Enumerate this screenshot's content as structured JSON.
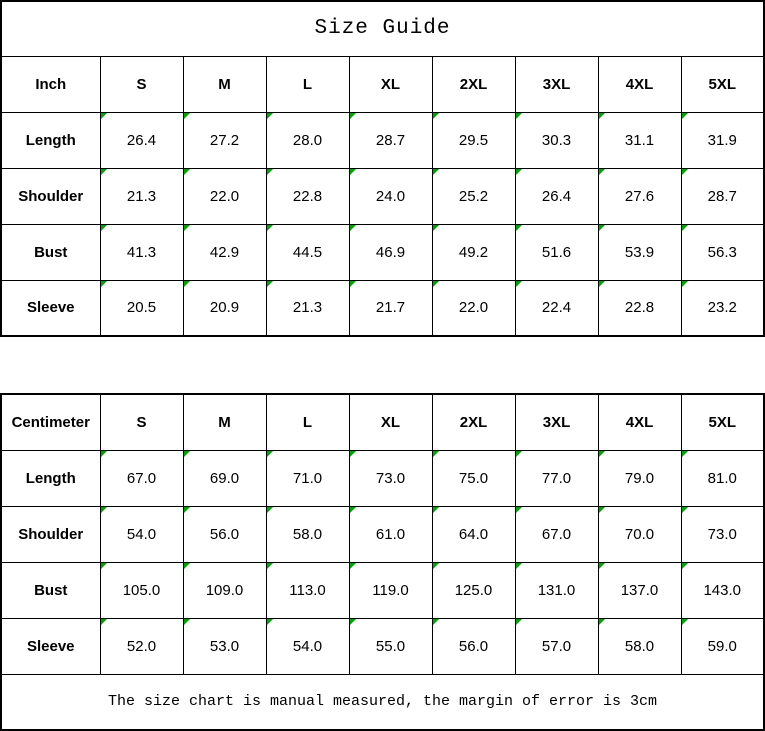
{
  "title": "Size Guide",
  "footer_note": "The size chart is manual measured, the margin of error is 3cm",
  "colors": {
    "border": "#000000",
    "text": "#000000",
    "background": "#ffffff",
    "corner_triangle": "#00a000"
  },
  "inch_table": {
    "unit_label": "Inch",
    "sizes": [
      "S",
      "M",
      "L",
      "XL",
      "2XL",
      "3XL",
      "4XL",
      "5XL"
    ],
    "rows": [
      {
        "label": "Length",
        "values": [
          "26.4",
          "27.2",
          "28.0",
          "28.7",
          "29.5",
          "30.3",
          "31.1",
          "31.9"
        ]
      },
      {
        "label": "Shoulder",
        "values": [
          "21.3",
          "22.0",
          "22.8",
          "24.0",
          "25.2",
          "26.4",
          "27.6",
          "28.7"
        ]
      },
      {
        "label": "Bust",
        "values": [
          "41.3",
          "42.9",
          "44.5",
          "46.9",
          "49.2",
          "51.6",
          "53.9",
          "56.3"
        ]
      },
      {
        "label": "Sleeve",
        "values": [
          "20.5",
          "20.9",
          "21.3",
          "21.7",
          "22.0",
          "22.4",
          "22.8",
          "23.2"
        ]
      }
    ]
  },
  "centimeter_table": {
    "unit_label": "Centimeter",
    "sizes": [
      "S",
      "M",
      "L",
      "XL",
      "2XL",
      "3XL",
      "4XL",
      "5XL"
    ],
    "rows": [
      {
        "label": "Length",
        "values": [
          "67.0",
          "69.0",
          "71.0",
          "73.0",
          "75.0",
          "77.0",
          "79.0",
          "81.0"
        ]
      },
      {
        "label": "Shoulder",
        "values": [
          "54.0",
          "56.0",
          "58.0",
          "61.0",
          "64.0",
          "67.0",
          "70.0",
          "73.0"
        ]
      },
      {
        "label": "Bust",
        "values": [
          "105.0",
          "109.0",
          "113.0",
          "119.0",
          "125.0",
          "131.0",
          "137.0",
          "143.0"
        ]
      },
      {
        "label": "Sleeve",
        "values": [
          "52.0",
          "53.0",
          "54.0",
          "55.0",
          "56.0",
          "57.0",
          "58.0",
          "59.0"
        ]
      }
    ]
  }
}
